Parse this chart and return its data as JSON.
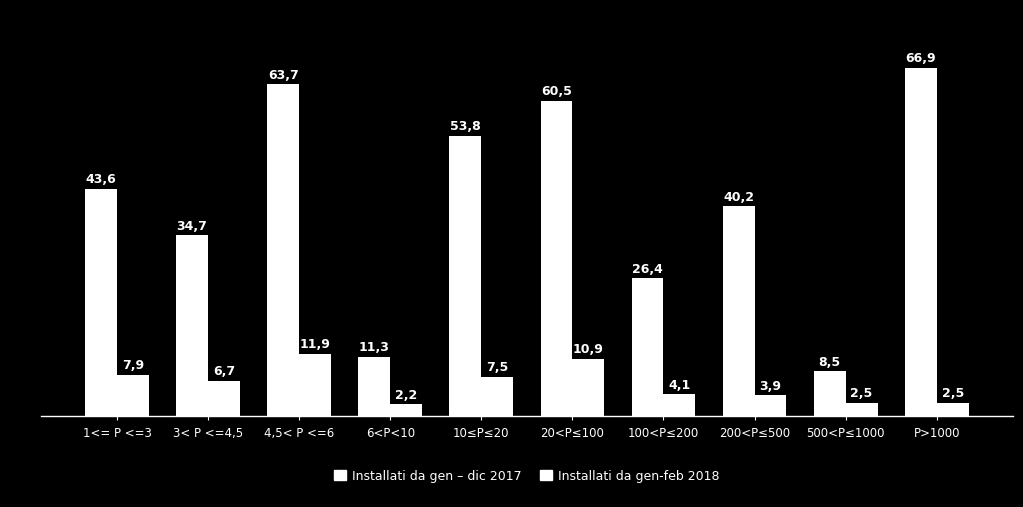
{
  "categories": [
    "1<= P <=3",
    "3< P <=4,5",
    "4,5< P <=6",
    "6<P<10",
    "10≤P≤20",
    "20<P≤100",
    "100<P≤200",
    "200<P≤500",
    "500<P≤1000",
    "P>1000"
  ],
  "values_2017": [
    43.6,
    34.7,
    63.7,
    11.3,
    53.8,
    60.5,
    26.4,
    40.2,
    8.5,
    66.9
  ],
  "values_2018": [
    7.9,
    6.7,
    11.9,
    2.2,
    7.5,
    10.9,
    4.1,
    3.9,
    2.5,
    2.5
  ],
  "bar_color_2017": "#ffffff",
  "bar_color_2018": "#ffffff",
  "background_color": "#000000",
  "text_color": "#ffffff",
  "legend_label_2017": "Installati da gen – dic 2017",
  "legend_label_2018": "Installati da gen-feb 2018",
  "ylim": [
    0,
    75
  ],
  "bar_width": 0.35,
  "label_fontsize": 9,
  "tick_fontsize": 8.5,
  "legend_fontsize": 9
}
